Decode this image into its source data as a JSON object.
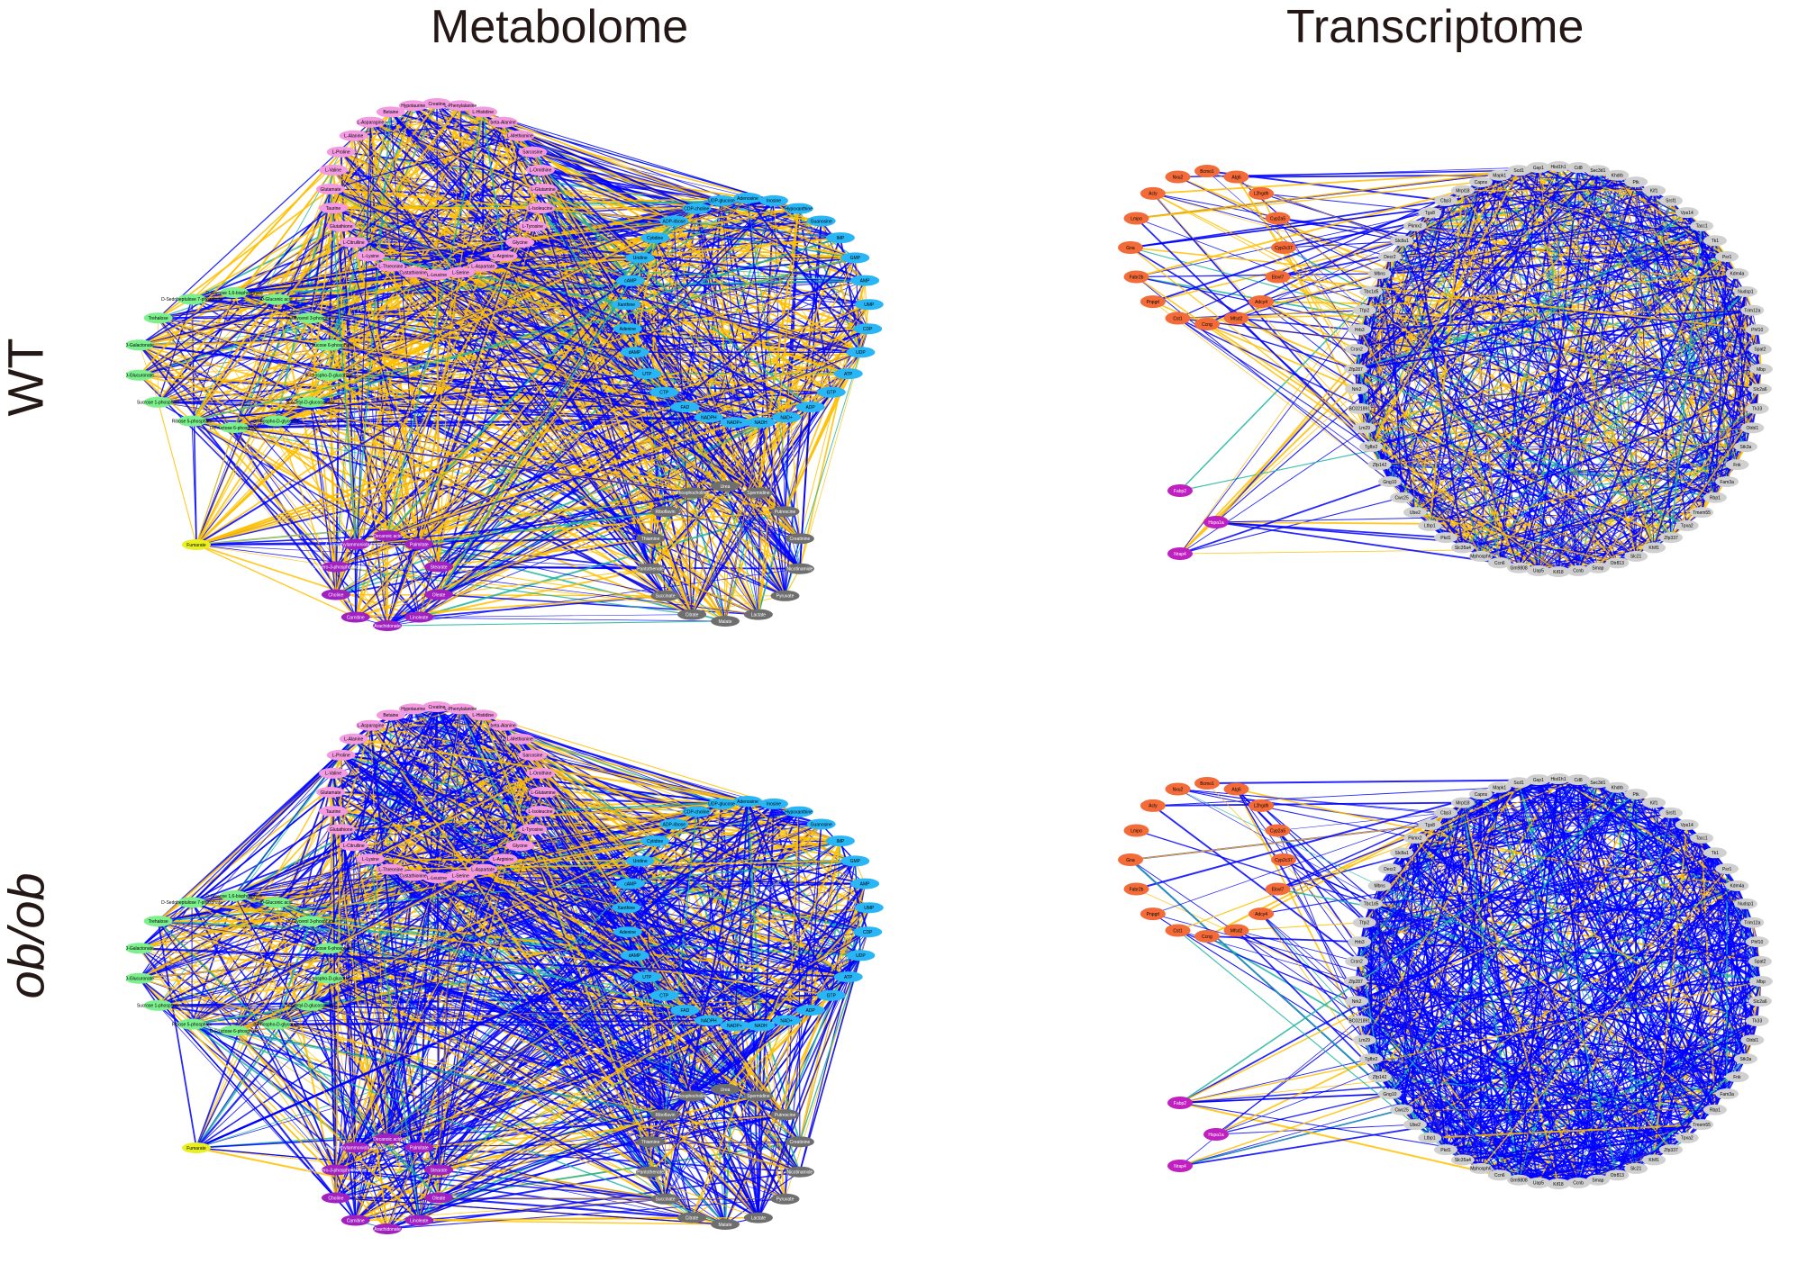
{
  "titles": {
    "metabolome": "Metabolome",
    "transcriptome": "Transcriptome"
  },
  "rows": {
    "wt": "WT",
    "obob": "ob/ob"
  },
  "colors": {
    "edge_yellow": "#FFC000",
    "edge_blue": "#0000FF",
    "edge_teal": "#1FB5A0",
    "amino_acid_nodes": "#F49AE0",
    "nucleotide_nodes": "#29B6F6",
    "sugar_nodes": "#7CF08C",
    "organic_acid_nodes": "#E8F020",
    "lipid_nodes": "#A020C0",
    "other_nodes": "#6E6E6E",
    "gene_nodes": "#D0D0D0",
    "tf_nodes": "#F26B38",
    "magenta_nodes": "#C020C0"
  },
  "metabolome_nodes": {
    "amino": [
      "Creatine",
      "L-Phenylalanine",
      "L-Histidine",
      "beta-Alanine",
      "L-Methionine",
      "Sarcosine",
      "L-Ornithine",
      "L-Glutamine",
      "L-Isoleucine",
      "L-Tyrosine",
      "Glycine",
      "L-Arginine",
      "L-Aspartate",
      "L-Serine",
      "L-Leucine",
      "Cystathionine",
      "L-Threonine",
      "L-Lysine",
      "L-Citrulline",
      "Glutathione",
      "Taurine",
      "Glutamate",
      "L-Valine",
      "L-Proline",
      "L-Alanine",
      "L-Asparagine",
      "Betaine",
      "Hypotaurine"
    ],
    "nucleotide": [
      "Adenosine",
      "Inosine",
      "Hypoxanthine",
      "Guanosine",
      "IMP",
      "GMP",
      "AMP",
      "UMP",
      "CDP",
      "UDP",
      "ATP",
      "GTP",
      "ADP",
      "NAD+",
      "NADH",
      "NADP+",
      "NADPH",
      "FAD",
      "CTP",
      "UTP",
      "dAMP",
      "Adenine",
      "Xanthine",
      "cAMP",
      "Uridine",
      "Cytidine",
      "ADP-ribose",
      "CDP-choline",
      "UDP-glucose"
    ],
    "sugar": [
      "D-Glucose 1,6-bisphosphate",
      "D-Gluconic acid",
      "sn-Glycerol 3-phosphate",
      "D-Glucose 6-phosphate",
      "6-Phospho-D-gluconate",
      "N-Acetyl-D-glucosamine",
      "3-Phospho-D-glycerate",
      "D-Fructose 6-phosphate",
      "Ribose 5-phosphate",
      "Sucrose 1-phosphate",
      "D-Glucuronate",
      "D-Galactonate",
      "Trehalose",
      "D-Sedoheptulose 7-phosphate"
    ],
    "organic": [
      "Fumarate"
    ],
    "lipid": [
      "Decanoic acid",
      "Palmitate",
      "Stearate",
      "Oleate",
      "Linoleate",
      "Arachidonate",
      "Carnitine",
      "Choline",
      "sn-Glycero-3-phosphocholine",
      "4-Trimethylammoniobutanoate"
    ],
    "other": [
      "Urea",
      "Spermidine",
      "Putrescine",
      "Creatinine",
      "Nicotinamide",
      "Pyruvate",
      "Lactate",
      "Malate",
      "Citrate",
      "Succinate",
      "Pantothenate",
      "Thiamine",
      "Riboflavin",
      "Phosphocholine"
    ]
  },
  "transcriptome_nodes": {
    "tf": [
      "Bcmo1",
      "Atg6",
      "L2hgdh",
      "Cyp2a5",
      "Cyp2c37",
      "Elovl7",
      "Adcy4",
      "Mfsd2",
      "Ccng",
      "Cst1",
      "Pnpgrl",
      "Fabr2b",
      "Gna",
      "Lmpo",
      "Acly",
      "Nxu2"
    ],
    "magenta": [
      "Fabp2",
      "Hspa1a",
      "Nrap4"
    ],
    "circle": [
      "Hist1h1",
      "Cd8",
      "Sec3d1",
      "Khdrb",
      "Ptk",
      "Kif1",
      "Srsf1",
      "Vps14",
      "Tacc1",
      "Tk1",
      "Psr1",
      "Kdm4a",
      "Nudsp1",
      "Trim12a",
      "Phf10",
      "Spat2",
      "Mbp",
      "Slc2a6",
      "Tk33",
      "Otrbl1",
      "Stk3a",
      "Fnk",
      "Fam3a",
      "Rbp1",
      "Tmem55",
      "Tpxa2",
      "Zfp337",
      "Khlf1",
      "Slc21",
      "Otr813",
      "Smap",
      "Ccnb",
      "Kif18",
      "Uap5",
      "Gm9808",
      "Ccn6",
      "Mphosph6",
      "Slc35a4",
      "Pkd1",
      "Ltbp1",
      "Ube2",
      "Cwc25",
      "Gng10",
      "Zfp142",
      "Tgfbr2",
      "Lm29",
      "BC021891",
      "Nrk2",
      "Zfp287",
      "Crsn2",
      "Hrb3",
      "Tfpi2",
      "Tbc1d5",
      "Mbns",
      "Decr2",
      "Slc8a1",
      "Pkmx2",
      "Tgs8",
      "Cbp3",
      "Mrpl18",
      "Capns",
      "Mapk1",
      "Scd1",
      "Gsp1"
    ]
  }
}
